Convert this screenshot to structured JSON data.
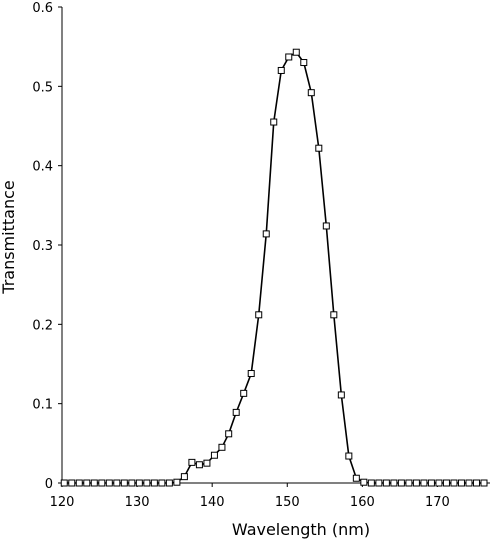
{
  "chart_data": {
    "type": "line",
    "xlabel": "Wavelength (nm)",
    "ylabel": "Transmittance",
    "xlim": [
      120,
      177
    ],
    "ylim": [
      0,
      0.6
    ],
    "x_ticks": [
      120,
      130,
      140,
      150,
      160,
      170
    ],
    "y_ticks": [
      0,
      0.1,
      0.2,
      0.3,
      0.4,
      0.5,
      0.6
    ],
    "y_tick_labels": [
      "0",
      "0.1",
      "0.2",
      "0.3",
      "0.4",
      "0.5",
      "0.6"
    ],
    "grid": false,
    "series": [
      {
        "marker": "open-square",
        "color": "#000000",
        "x": [
          120.3,
          121.3,
          122.3,
          123.3,
          124.3,
          125.3,
          126.3,
          127.3,
          128.3,
          129.3,
          130.3,
          131.3,
          132.3,
          133.3,
          134.3,
          135.3,
          136.3,
          137.3,
          138.3,
          139.3,
          140.3,
          141.3,
          142.2,
          143.2,
          144.2,
          145.2,
          146.2,
          147.2,
          148.2,
          149.2,
          150.2,
          151.2,
          152.2,
          153.2,
          154.2,
          155.2,
          156.2,
          157.2,
          158.2,
          159.2,
          160.2,
          161.2,
          162.2,
          163.2,
          164.2,
          165.2,
          166.2,
          167.2,
          168.2,
          169.2,
          170.2,
          171.2,
          172.2,
          173.2,
          174.2,
          175.2,
          176.2
        ],
        "y": [
          0,
          0,
          0,
          0,
          0,
          0,
          0,
          0,
          0,
          0,
          0,
          0,
          0,
          0,
          0,
          0.001,
          0.008,
          0.026,
          0.023,
          0.025,
          0.035,
          0.045,
          0.062,
          0.089,
          0.113,
          0.138,
          0.212,
          0.314,
          0.455,
          0.52,
          0.537,
          0.543,
          0.53,
          0.492,
          0.422,
          0.324,
          0.212,
          0.111,
          0.034,
          0.006,
          0.001,
          0,
          0,
          0,
          0,
          0,
          0,
          0,
          0,
          0,
          0,
          0,
          0,
          0,
          0,
          0,
          0
        ]
      }
    ]
  }
}
